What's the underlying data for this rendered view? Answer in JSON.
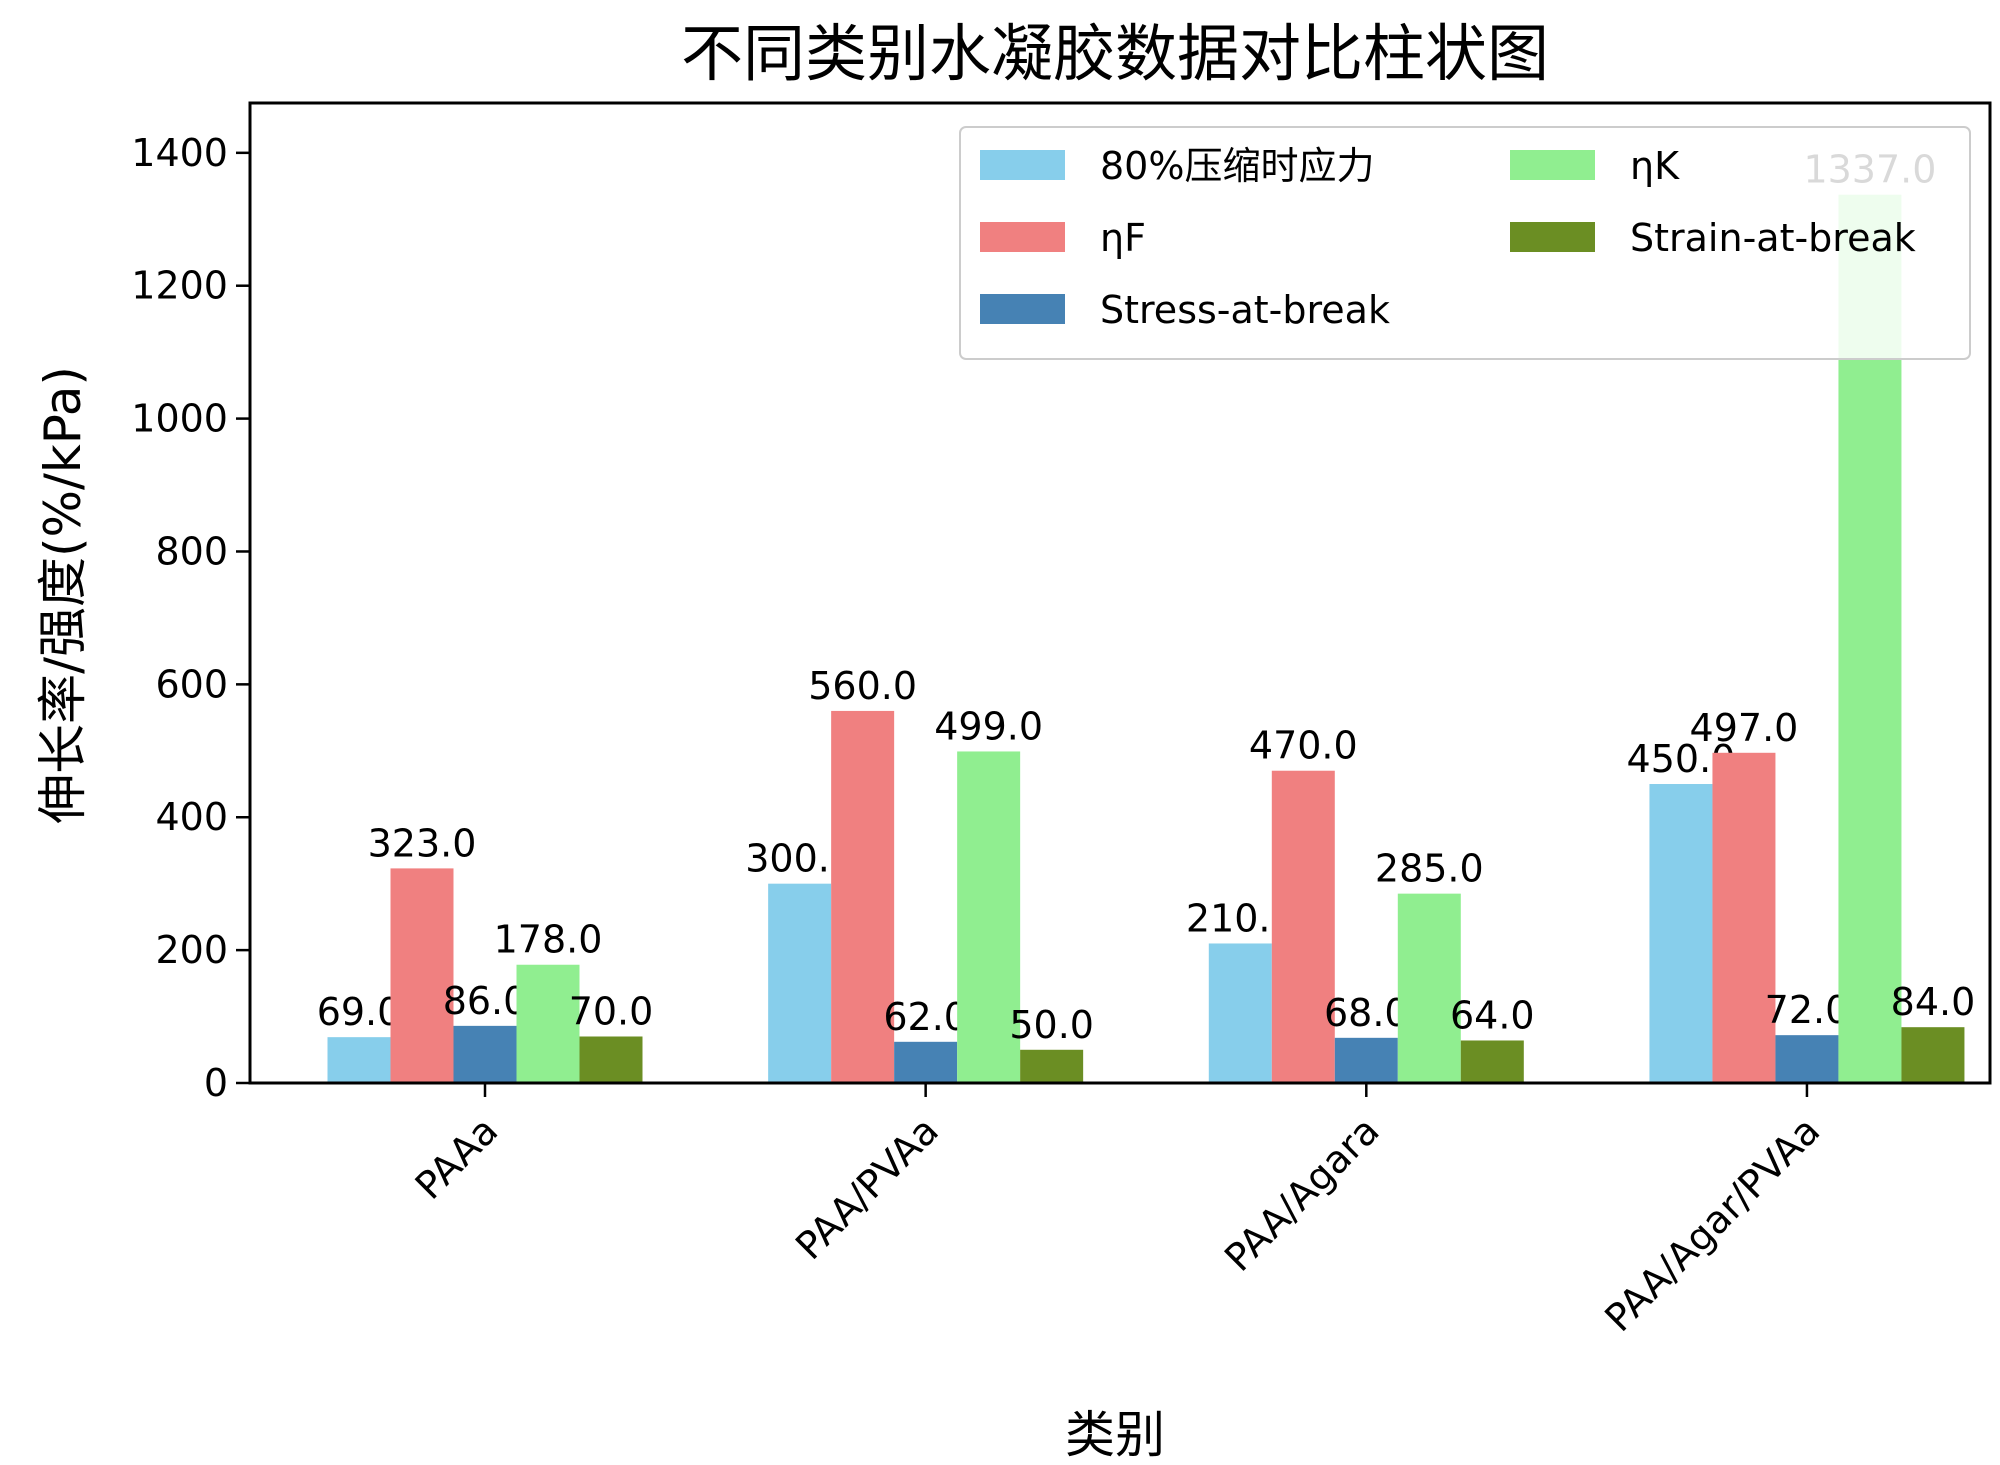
{
  "chart_data": {
    "type": "bar",
    "title": "不同类别水凝胶数据对比柱状图",
    "xlabel": "类别",
    "ylabel": "伸长率/强度(%/kPa)",
    "categories": [
      "PAAa",
      "PAA/PVAa",
      "PAA/Agara",
      "PAA/Agar/PVAa"
    ],
    "ylim": [
      0,
      1475
    ],
    "yticks": [
      0,
      200,
      400,
      600,
      800,
      1000,
      1200,
      1400
    ],
    "grid": false,
    "legend_position": "top-right",
    "series": [
      {
        "name": "80%压缩时应力",
        "color": "#87CEEB",
        "values": [
          69.0,
          300.0,
          210.0,
          450.0
        ]
      },
      {
        "name": "ηF",
        "color": "#F08080",
        "values": [
          323.0,
          560.0,
          470.0,
          497.0
        ]
      },
      {
        "name": "Stress-at-break",
        "color": "#4682B4",
        "values": [
          86.0,
          62.0,
          68.0,
          72.0
        ]
      },
      {
        "name": "ηK",
        "color": "#90EE90",
        "values": [
          178.0,
          499.0,
          285.0,
          1337.0
        ]
      },
      {
        "name": "Strain-at-break",
        "color": "#6B8E23",
        "values": [
          70.0,
          50.0,
          64.0,
          84.0
        ]
      }
    ],
    "data_labels": [
      [
        "69.0",
        "300.0",
        "210.0",
        "450.0"
      ],
      [
        "323.0",
        "560.0",
        "470.0",
        "497.0"
      ],
      [
        "86.0",
        "62.0",
        "68.0",
        "72.0"
      ],
      [
        "178.0",
        "499.0",
        "285.0",
        "1337.0"
      ],
      [
        "70.0",
        "50.0",
        "64.0",
        "84.0"
      ]
    ]
  }
}
